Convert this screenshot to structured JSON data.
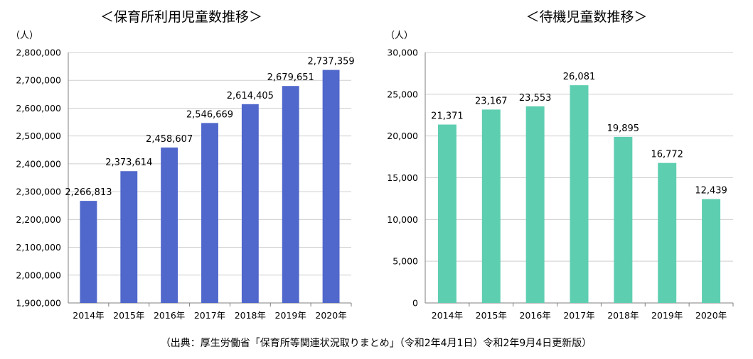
{
  "chart_data": [
    {
      "type": "bar",
      "title": "＜保育所利用児童数推移＞",
      "unit_label": "（人）",
      "categories": [
        "2014年",
        "2015年",
        "2016年",
        "2017年",
        "2018年",
        "2019年",
        "2020年"
      ],
      "values": [
        2266813,
        2373614,
        2458607,
        2546669,
        2614405,
        2679651,
        2737359
      ],
      "data_labels": [
        "2,266,813",
        "2,373,614",
        "2,458,607",
        "2,546,669",
        "2,614,405",
        "2,679,651",
        "2,737,359"
      ],
      "ylim": [
        1900000,
        2800000
      ],
      "yticks": [
        1900000,
        2000000,
        2100000,
        2200000,
        2300000,
        2400000,
        2500000,
        2600000,
        2700000,
        2800000
      ],
      "ytick_labels": [
        "1,900,000",
        "2,000,000",
        "2,100,000",
        "2,200,000",
        "2,300,000",
        "2,400,000",
        "2,500,000",
        "2,600,000",
        "2,700,000",
        "2,800,000"
      ],
      "grid": true,
      "bar_color": "#5067CB"
    },
    {
      "type": "bar",
      "title": "＜待機児童数推移＞",
      "unit_label": "（人）",
      "categories": [
        "2014年",
        "2015年",
        "2016年",
        "2017年",
        "2018年",
        "2019年",
        "2020年"
      ],
      "values": [
        21371,
        23167,
        23553,
        26081,
        19895,
        16772,
        12439
      ],
      "data_labels": [
        "21,371",
        "23,167",
        "23,553",
        "26,081",
        "19,895",
        "16,772",
        "12,439"
      ],
      "ylim": [
        0,
        30000
      ],
      "yticks": [
        0,
        5000,
        10000,
        15000,
        20000,
        25000,
        30000
      ],
      "ytick_labels": [
        "0",
        "5,000",
        "10,000",
        "15,000",
        "20,000",
        "25,000",
        "30,000"
      ],
      "grid": true,
      "bar_color": "#5ECEB1"
    }
  ],
  "footer": {
    "source": "（出典：厚生労働省「保育所等関連状況取りまとめ」（令和2年4月1日）令和2年9月4日更新版）"
  }
}
